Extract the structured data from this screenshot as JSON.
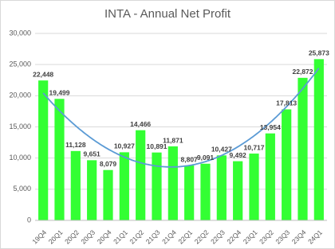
{
  "chart_data": {
    "type": "bar",
    "title": "INTA - Annual Net Profit",
    "categories": [
      "19Q4",
      "20Q1",
      "20Q2",
      "20Q3",
      "20Q4",
      "21Q1",
      "21Q2",
      "21Q3",
      "21Q4",
      "22Q1",
      "22Q2",
      "22Q3",
      "22Q4",
      "23Q1",
      "23Q2",
      "23Q3",
      "23Q4",
      "24Q1"
    ],
    "values": [
      22448,
      19499,
      11128,
      9651,
      8079,
      10927,
      14466,
      10891,
      11871,
      8807,
      9091,
      10427,
      9492,
      10717,
      13954,
      17813,
      22872,
      25873
    ],
    "value_labels": [
      "22,448",
      "19,499",
      "11,128",
      "9,651",
      "8,079",
      "10,927",
      "14,466",
      "10,891",
      "11,871",
      "8,807",
      "9,091",
      "10,427",
      "9,492",
      "10,717",
      "13,954",
      "17,813",
      "22,872",
      "25,873"
    ],
    "color": "#33ff33",
    "ylim": [
      0,
      30000
    ],
    "yticks": [
      0,
      {
        "value": 5000,
        "label": "5,000"
      },
      {
        "value": 10000,
        "label": "10,000"
      },
      {
        "value": 15000,
        "label": "15,000"
      },
      {
        "value": 20000,
        "label": "20,000"
      },
      {
        "value": 25000,
        "label": "25,000"
      },
      {
        "value": 30000,
        "label": "30,000"
      }
    ],
    "grid": true,
    "trendline": {
      "type": "polynomial",
      "order": 2,
      "color": "#5b9bd5"
    }
  }
}
